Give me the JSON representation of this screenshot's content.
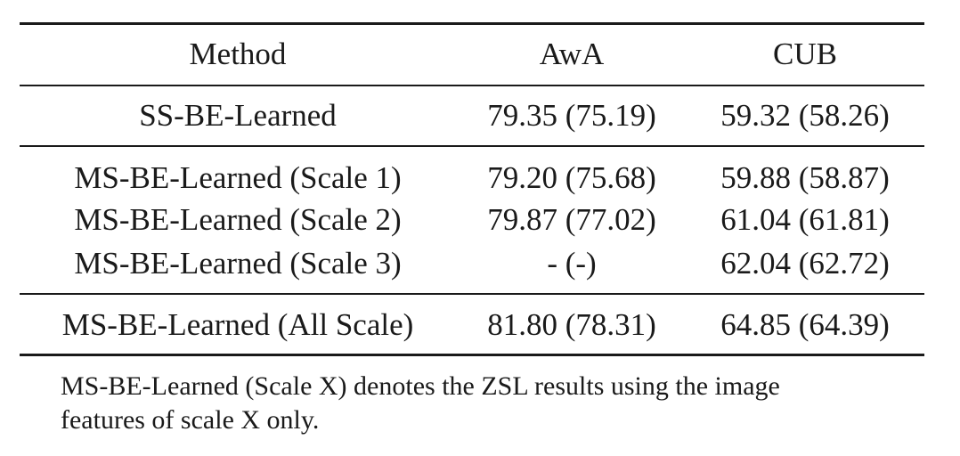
{
  "table": {
    "headers": {
      "method": "Method",
      "awa": "AwA",
      "cub": "CUB"
    },
    "rows": [
      {
        "method": "SS-BE-Learned",
        "awa": "79.35 (75.19)",
        "cub": "59.32 (58.26)"
      },
      {
        "method": "MS-BE-Learned (Scale 1)",
        "awa": "79.20 (75.68)",
        "cub": "59.88 (58.87)"
      },
      {
        "method": "MS-BE-Learned (Scale 2)",
        "awa": "79.87 (77.02)",
        "cub": "61.04 (61.81)"
      },
      {
        "method": "MS-BE-Learned (Scale 3)",
        "awa": "- (-)",
        "cub": "62.04 (62.72)"
      },
      {
        "method": "MS-BE-Learned (All Scale)",
        "awa": "81.80 (78.31)",
        "cub": "64.85 (64.39)"
      }
    ]
  },
  "note": {
    "line1": "MS-BE-Learned (Scale X) denotes the ZSL results using the image",
    "line2": "features of scale X only."
  }
}
